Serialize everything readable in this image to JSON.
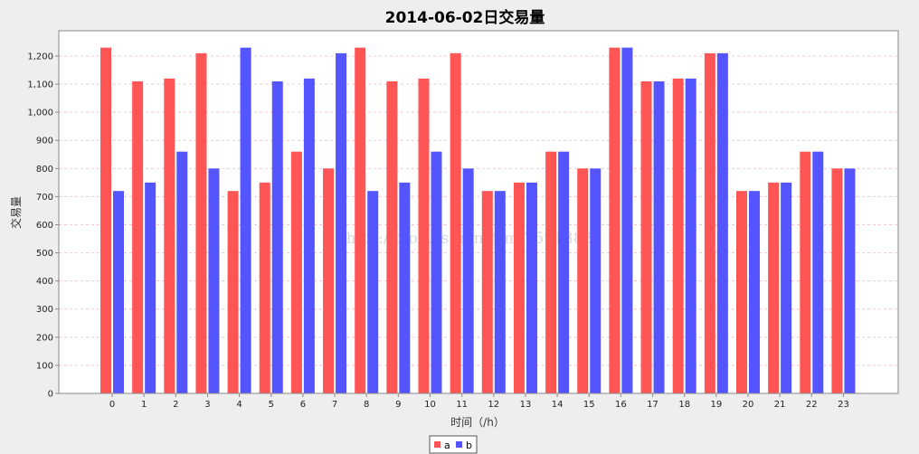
{
  "chart_data": {
    "type": "bar",
    "title": "2014-06-02日交易量",
    "xlabel": "时间（/h）",
    "ylabel": "交易量",
    "categories": [
      "0",
      "1",
      "2",
      "3",
      "4",
      "5",
      "6",
      "7",
      "8",
      "9",
      "10",
      "11",
      "12",
      "13",
      "14",
      "15",
      "16",
      "17",
      "18",
      "19",
      "20",
      "21",
      "22",
      "23"
    ],
    "series": [
      {
        "name": "a",
        "color": "#ff5555",
        "values": [
          1230,
          1110,
          1120,
          1210,
          720,
          750,
          860,
          800,
          1230,
          1110,
          1120,
          1210,
          720,
          750,
          860,
          800,
          1230,
          1110,
          1120,
          1210,
          720,
          750,
          860,
          800
        ]
      },
      {
        "name": "b",
        "color": "#5555ff",
        "values": [
          720,
          750,
          860,
          800,
          1230,
          1110,
          1120,
          1210,
          720,
          750,
          860,
          800,
          720,
          750,
          860,
          800,
          1230,
          1110,
          1120,
          1210,
          720,
          750,
          860,
          800
        ]
      }
    ],
    "ylim": [
      0,
      1290
    ],
    "yticks": [
      0,
      100,
      200,
      300,
      400,
      500,
      600,
      700,
      800,
      900,
      1000,
      1100,
      1200
    ],
    "ytick_labels": [
      "0",
      "100",
      "200",
      "300",
      "400",
      "500",
      "600",
      "700",
      "800",
      "900",
      "1,000",
      "1,100",
      "1,200"
    ],
    "grid": true,
    "grid_color": "#ffc0cb",
    "plot_background": "#ffffff",
    "legend_position": "bottom",
    "watermark": "http://blog.csdn.net/mf7591383"
  }
}
